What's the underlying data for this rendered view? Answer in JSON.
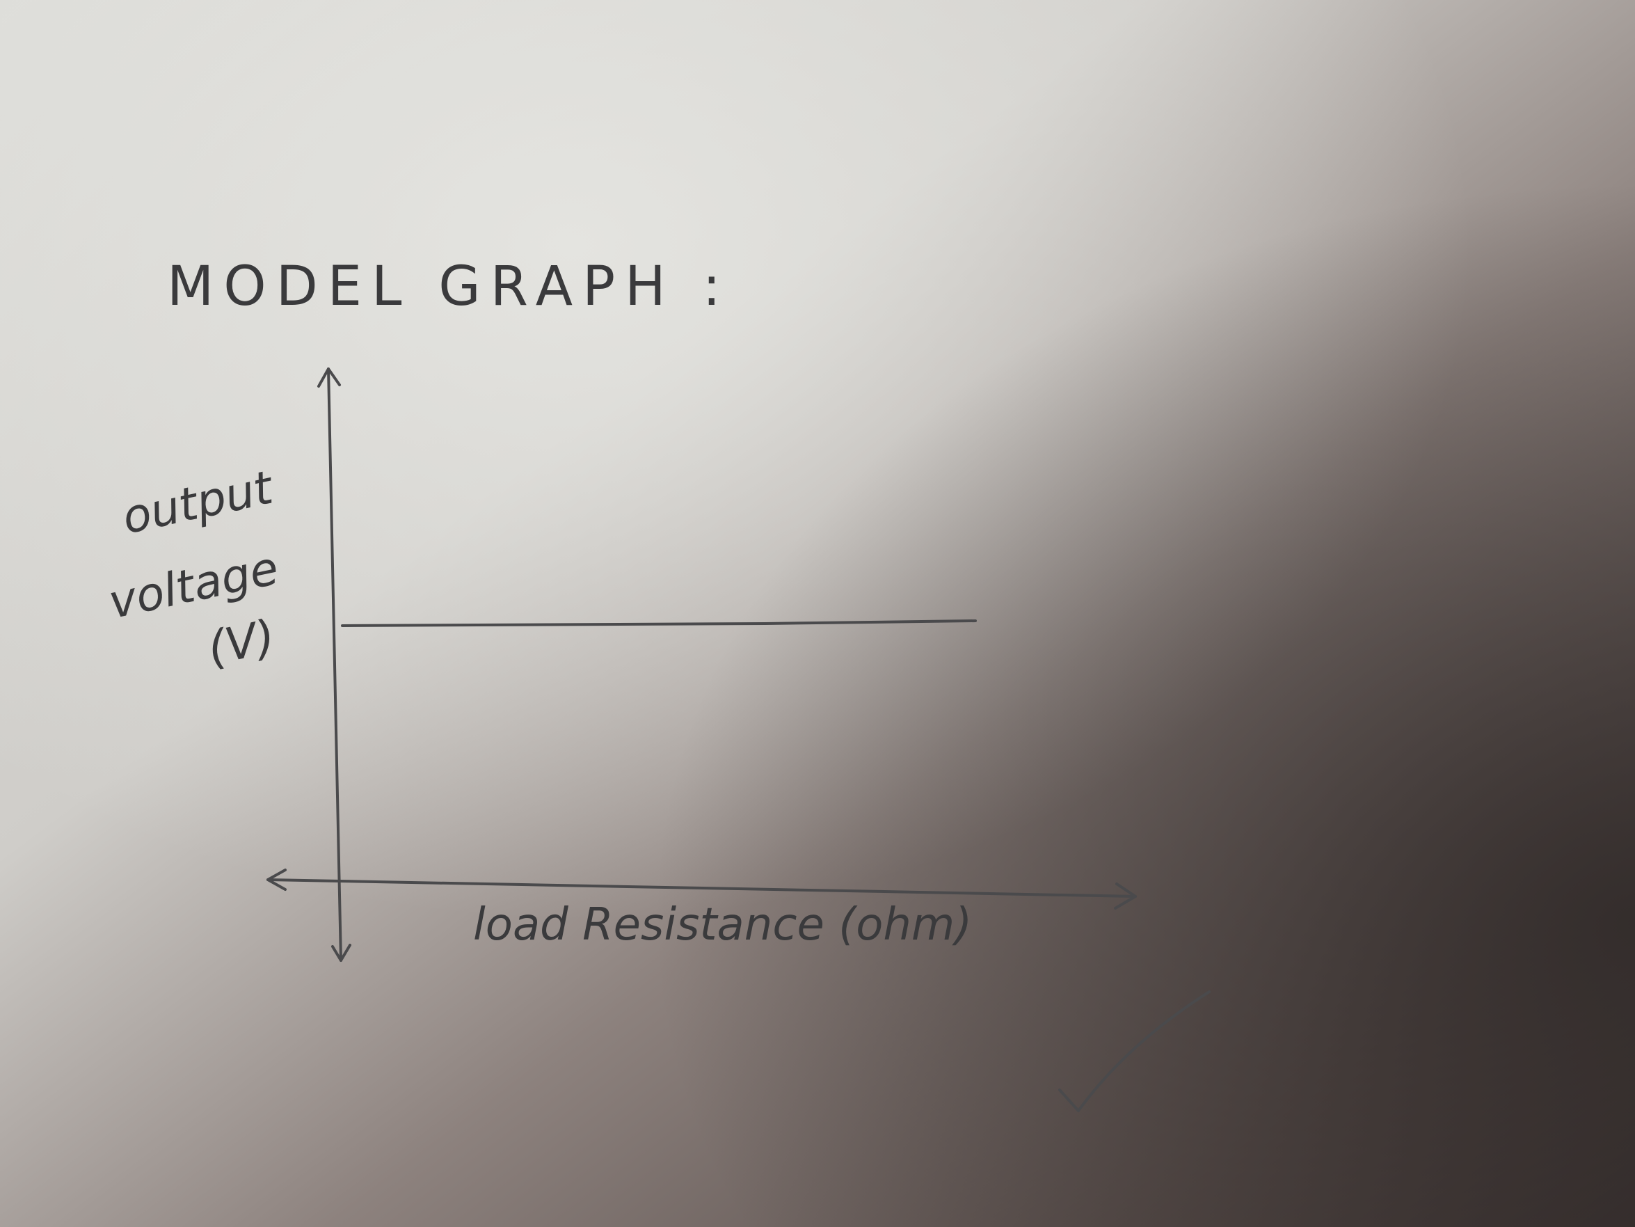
{
  "header": {
    "title": "MODEL GRAPH :"
  },
  "graph": {
    "y_axis_label": [
      "output",
      "voltage",
      "(V)"
    ],
    "x_axis_label": "load Resistance (ohm)"
  }
}
